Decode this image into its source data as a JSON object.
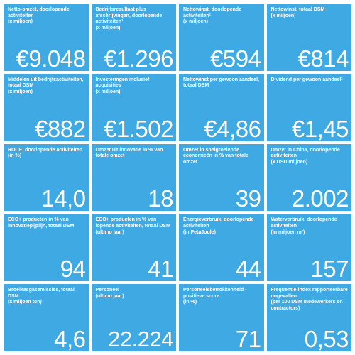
{
  "tiles": [
    {
      "title": "Netto-omzet, doorlopende activiteiten",
      "sub": "(x miljoen)",
      "value": "€9.048"
    },
    {
      "title": "Bedrijfsresultaat plus afschrijvingen, doorlopende activiteiten¹",
      "sub": "(x miljoen)",
      "value": "€1.296"
    },
    {
      "title": "Nettowinst, doorlopende activiteiten¹",
      "sub": "(x miljoen)",
      "value": "€594"
    },
    {
      "title": "Nettowinst, totaal DSM",
      "sub": "(x miljoen)",
      "value": "€814"
    },
    {
      "title": "Middelen uit bedrijfsactiviteiten, totaal DSM",
      "sub": "(x miljoen)",
      "value": "€882"
    },
    {
      "title": "Investeringen inclusief acquisities",
      "sub": "(x miljoen)",
      "value": "€1.502"
    },
    {
      "title": "Nettowinst per gewoon aandeel, totaal DSM",
      "sub": "",
      "value": "€4,86"
    },
    {
      "title": "Dividend per gewoon aandeel²",
      "sub": "",
      "value": "€1,45"
    },
    {
      "title": "ROCE, doorlopende activiteiten",
      "sub": "(in %)",
      "value": "14,0"
    },
    {
      "title": "Omzet uit innovatie in % van totale omzet",
      "sub": "",
      "value": "18"
    },
    {
      "title": "Omzet in snelgroeiende economieën in % van totale omzet",
      "sub": "",
      "value": "39"
    },
    {
      "title": "Omzet in China, doorlopende activiteiten",
      "sub": "(x USD miljoen)",
      "value": "2.002"
    },
    {
      "title": "ECO+ producten in % van innovatiepijplijn, totaal DSM",
      "sub": "",
      "value": "94"
    },
    {
      "title": "ECO+ producten in % van lopende activiteiten, totaal DSM",
      "sub": "(ultimo jaar)",
      "value": "41"
    },
    {
      "title": "Energieverbruik, doorlopende activiteiten",
      "sub": "(in PetaJoule)",
      "value": "44"
    },
    {
      "title": "Waterverbruik, doorlopende activiteiten",
      "sub": "(in miljoen m³)",
      "value": "157"
    },
    {
      "title": "Broeikasgasemissies, totaal DSM",
      "sub": "(x miljoen ton)",
      "value": "4,6"
    },
    {
      "title": "Personeel",
      "sub": "(ultimo jaar)",
      "value": "22.224"
    },
    {
      "title": "Personeelsbetrokkenheid - positieve score",
      "sub": "(in %)",
      "value": "71"
    },
    {
      "title": "Frequentie-index rapporteerbare ongevallen",
      "sub": "(per 100 DSM medewerkers en contractors)",
      "value": "0,53"
    }
  ],
  "colors": {
    "tile_background": "#3fa9e3",
    "text": "#ffffff"
  }
}
